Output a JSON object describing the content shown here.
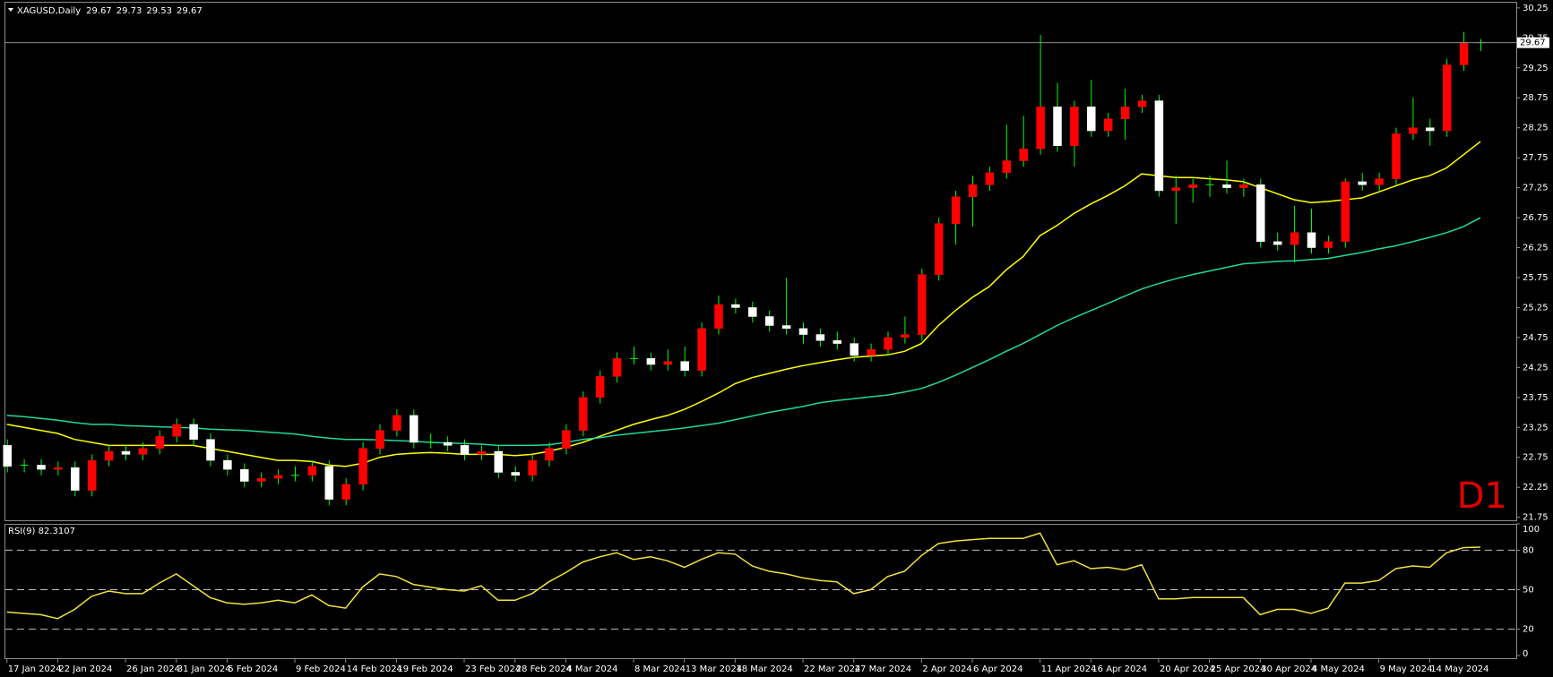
{
  "chart_data": [
    {
      "type": "candlestick",
      "title": "XAGUSD,Daily",
      "header_values": [
        29.67,
        29.73,
        29.53,
        29.67
      ],
      "annotation": "D1",
      "categories": [
        "17 Jan 2024",
        null,
        null,
        "22 Jan 2024",
        null,
        null,
        null,
        "26 Jan 2024",
        null,
        null,
        "31 Jan 2024",
        null,
        null,
        "5 Feb 2024",
        null,
        null,
        null,
        "9 Feb 2024",
        null,
        null,
        "14 Feb 2024",
        null,
        null,
        "19 Feb 2024",
        null,
        null,
        null,
        "23 Feb 2024",
        null,
        null,
        "28 Feb 2024",
        null,
        null,
        "4 Mar 2024",
        null,
        null,
        null,
        "8 Mar 2024",
        null,
        null,
        "13 Mar 2024",
        null,
        null,
        "18 Mar 2024",
        null,
        null,
        null,
        "22 Mar 2024",
        null,
        null,
        "27 Mar 2024",
        null,
        null,
        null,
        "2 Apr 2024",
        null,
        null,
        "6 Apr 2024",
        null,
        null,
        null,
        "11 Apr 2024",
        null,
        null,
        "16 Apr 2024",
        null,
        null,
        null,
        "20 Apr 2024",
        null,
        null,
        "25 Apr 2024",
        null,
        null,
        "30 Apr 2024",
        null,
        null,
        "4 May 2024",
        null,
        null,
        null,
        "9 May 2024",
        null,
        null,
        "14 May 2024",
        null,
        null,
        null
      ],
      "open": [
        22.95,
        22.6,
        22.62,
        22.55,
        22.58,
        22.2,
        22.7,
        22.85,
        22.8,
        22.9,
        23.1,
        23.3,
        23.05,
        22.7,
        22.55,
        22.35,
        22.4,
        22.45,
        22.45,
        22.6,
        22.05,
        22.3,
        22.9,
        23.2,
        23.45,
        23.0,
        23.0,
        22.95,
        22.8,
        22.85,
        22.5,
        22.45,
        22.7,
        22.9,
        23.2,
        23.75,
        24.1,
        24.4,
        24.4,
        24.3,
        24.35,
        24.2,
        24.9,
        25.3,
        25.25,
        25.1,
        24.95,
        24.9,
        24.8,
        24.7,
        24.65,
        24.45,
        24.55,
        24.75,
        24.8,
        25.8,
        26.65,
        27.1,
        27.3,
        27.5,
        27.7,
        27.9,
        28.6,
        27.95,
        28.6,
        28.2,
        28.4,
        28.6,
        28.7,
        27.2,
        27.25,
        27.3,
        27.3,
        27.25,
        27.3,
        26.35,
        26.3,
        26.5,
        26.25,
        26.35,
        27.35,
        27.3,
        27.4,
        28.15,
        28.25,
        28.2,
        29.3,
        29.67
      ],
      "high": [
        23.05,
        22.72,
        22.72,
        22.68,
        22.68,
        22.8,
        22.95,
        22.95,
        23.0,
        23.2,
        23.4,
        23.4,
        23.15,
        22.8,
        22.65,
        22.5,
        22.55,
        22.6,
        22.7,
        22.7,
        22.4,
        23.0,
        23.3,
        23.55,
        23.55,
        23.15,
        23.1,
        23.05,
        22.95,
        22.95,
        22.6,
        22.8,
        23.0,
        23.3,
        23.85,
        24.2,
        24.5,
        24.6,
        24.5,
        24.55,
        24.6,
        25.0,
        25.45,
        25.4,
        25.35,
        25.2,
        25.75,
        25.0,
        24.9,
        24.85,
        24.75,
        24.65,
        24.85,
        25.1,
        25.9,
        26.75,
        27.2,
        27.45,
        27.6,
        28.3,
        28.45,
        29.8,
        29.0,
        28.7,
        29.05,
        28.5,
        28.9,
        28.8,
        28.8,
        27.45,
        27.4,
        27.45,
        27.7,
        27.4,
        27.4,
        26.5,
        26.95,
        26.9,
        26.45,
        27.4,
        27.5,
        27.5,
        28.25,
        28.75,
        28.4,
        29.4,
        29.85,
        29.73
      ],
      "low": [
        22.5,
        22.5,
        22.45,
        22.45,
        22.1,
        22.1,
        22.6,
        22.7,
        22.7,
        22.8,
        23.0,
        22.95,
        22.6,
        22.45,
        22.25,
        22.25,
        22.3,
        22.35,
        22.35,
        21.95,
        21.95,
        22.2,
        22.8,
        23.1,
        22.9,
        22.9,
        22.85,
        22.7,
        22.7,
        22.4,
        22.35,
        22.35,
        22.6,
        22.8,
        23.1,
        23.65,
        24.0,
        24.3,
        24.2,
        24.2,
        24.1,
        24.1,
        24.8,
        25.15,
        25.0,
        24.85,
        24.8,
        24.65,
        24.6,
        24.55,
        24.35,
        24.35,
        24.45,
        24.65,
        24.7,
        25.7,
        26.3,
        26.6,
        27.2,
        27.4,
        27.6,
        27.8,
        27.85,
        27.6,
        28.1,
        28.1,
        28.05,
        28.5,
        27.1,
        26.65,
        27.0,
        27.1,
        27.15,
        27.1,
        26.25,
        26.2,
        26.0,
        26.15,
        26.15,
        26.25,
        27.2,
        27.2,
        27.3,
        28.05,
        27.95,
        28.1,
        29.2,
        29.53
      ],
      "close": [
        22.6,
        22.62,
        22.55,
        22.58,
        22.2,
        22.7,
        22.85,
        22.8,
        22.9,
        23.1,
        23.3,
        23.05,
        22.7,
        22.55,
        22.35,
        22.4,
        22.45,
        22.45,
        22.6,
        22.05,
        22.3,
        22.9,
        23.2,
        23.45,
        23.0,
        23.0,
        22.95,
        22.8,
        22.85,
        22.5,
        22.45,
        22.7,
        22.9,
        23.2,
        23.75,
        24.1,
        24.4,
        24.4,
        24.3,
        24.35,
        24.2,
        24.9,
        25.3,
        25.25,
        25.1,
        24.95,
        24.9,
        24.8,
        24.7,
        24.65,
        24.45,
        24.55,
        24.75,
        24.8,
        25.8,
        26.65,
        27.1,
        27.3,
        27.5,
        27.7,
        27.9,
        28.6,
        27.95,
        28.6,
        28.2,
        28.4,
        28.6,
        28.7,
        27.2,
        27.25,
        27.3,
        27.3,
        27.25,
        27.3,
        26.35,
        26.3,
        26.5,
        26.25,
        26.35,
        27.35,
        27.3,
        27.4,
        28.15,
        28.25,
        28.2,
        29.3,
        29.67,
        29.67
      ],
      "up_color": "#ff0000",
      "down_color": "#ffffff",
      "wick_color": "#00ff00",
      "series": [
        {
          "color": "#ffff00",
          "values": [
            23.3,
            23.25,
            23.2,
            23.15,
            23.05,
            23.0,
            22.95,
            22.95,
            22.95,
            22.95,
            22.95,
            22.95,
            22.9,
            22.85,
            22.8,
            22.75,
            22.7,
            22.7,
            22.68,
            22.62,
            22.6,
            22.65,
            22.75,
            22.8,
            22.82,
            22.83,
            22.82,
            22.8,
            22.8,
            22.8,
            22.78,
            22.8,
            22.85,
            22.92,
            23.0,
            23.1,
            23.2,
            23.3,
            23.38,
            23.45,
            23.55,
            23.68,
            23.82,
            23.98,
            24.08,
            24.15,
            24.22,
            24.28,
            24.33,
            24.38,
            24.42,
            24.44,
            24.46,
            24.52,
            24.65,
            24.95,
            25.2,
            25.42,
            25.6,
            25.88,
            26.1,
            26.45,
            26.62,
            26.82,
            26.98,
            27.12,
            27.28,
            27.48,
            27.45,
            27.42,
            27.42,
            27.4,
            27.38,
            27.35,
            27.25,
            27.15,
            27.05,
            27.0,
            27.02,
            27.05,
            27.08,
            27.18,
            27.28,
            27.38,
            27.45,
            27.58,
            27.8,
            28.02
          ]
        },
        {
          "color": "#20d8a0",
          "values": [
            23.45,
            23.43,
            23.4,
            23.37,
            23.33,
            23.3,
            23.3,
            23.28,
            23.27,
            23.26,
            23.25,
            23.24,
            23.22,
            23.21,
            23.2,
            23.18,
            23.16,
            23.14,
            23.1,
            23.07,
            23.05,
            23.05,
            23.04,
            23.03,
            23.02,
            23.0,
            22.99,
            22.98,
            22.97,
            22.95,
            22.95,
            22.95,
            22.96,
            23.0,
            23.05,
            23.08,
            23.12,
            23.15,
            23.18,
            23.21,
            23.24,
            23.28,
            23.32,
            23.38,
            23.44,
            23.5,
            23.55,
            23.6,
            23.66,
            23.7,
            23.73,
            23.76,
            23.79,
            23.84,
            23.9,
            24.0,
            24.12,
            24.25,
            24.38,
            24.52,
            24.65,
            24.8,
            24.95,
            25.08,
            25.2,
            25.32,
            25.44,
            25.56,
            25.65,
            25.73,
            25.8,
            25.86,
            25.92,
            25.98,
            26.0,
            26.02,
            26.03,
            26.05,
            26.07,
            26.12,
            26.17,
            26.23,
            26.28,
            26.35,
            26.42,
            26.5,
            26.6,
            26.75
          ]
        }
      ],
      "price_line": 29.67,
      "price_line_color": "#8c8c8c",
      "ylim": [
        21.7,
        30.3
      ],
      "yticks": [
        21.75,
        22.25,
        22.75,
        23.25,
        23.75,
        24.25,
        24.75,
        25.25,
        25.75,
        26.25,
        26.75,
        27.25,
        27.75,
        28.25,
        28.75,
        29.25,
        29.75,
        30.25
      ]
    },
    {
      "type": "line",
      "title": "RSI(9) 82.3107",
      "color": "#f0e040",
      "values": [
        33,
        32,
        31,
        28,
        35,
        45,
        49,
        47,
        47,
        55,
        62,
        53,
        44,
        40,
        39,
        40,
        42,
        40,
        46,
        38,
        36,
        52,
        62,
        60,
        54,
        52,
        50,
        49,
        53,
        42,
        42,
        47,
        56,
        63,
        71,
        75,
        78,
        73,
        75,
        72,
        67,
        73,
        78,
        77,
        68,
        64,
        62,
        59,
        57,
        56,
        47,
        50,
        60,
        64,
        76,
        85,
        87,
        88,
        89,
        89,
        89,
        93,
        69,
        72,
        66,
        67,
        65,
        69,
        43,
        43,
        44,
        44,
        44,
        44,
        31,
        35,
        35,
        32,
        36,
        55,
        55,
        57,
        66,
        68,
        67,
        78,
        82,
        82.3107
      ],
      "ylim": [
        0,
        100
      ],
      "yticks": [
        0,
        20,
        50,
        80,
        100
      ]
    }
  ]
}
